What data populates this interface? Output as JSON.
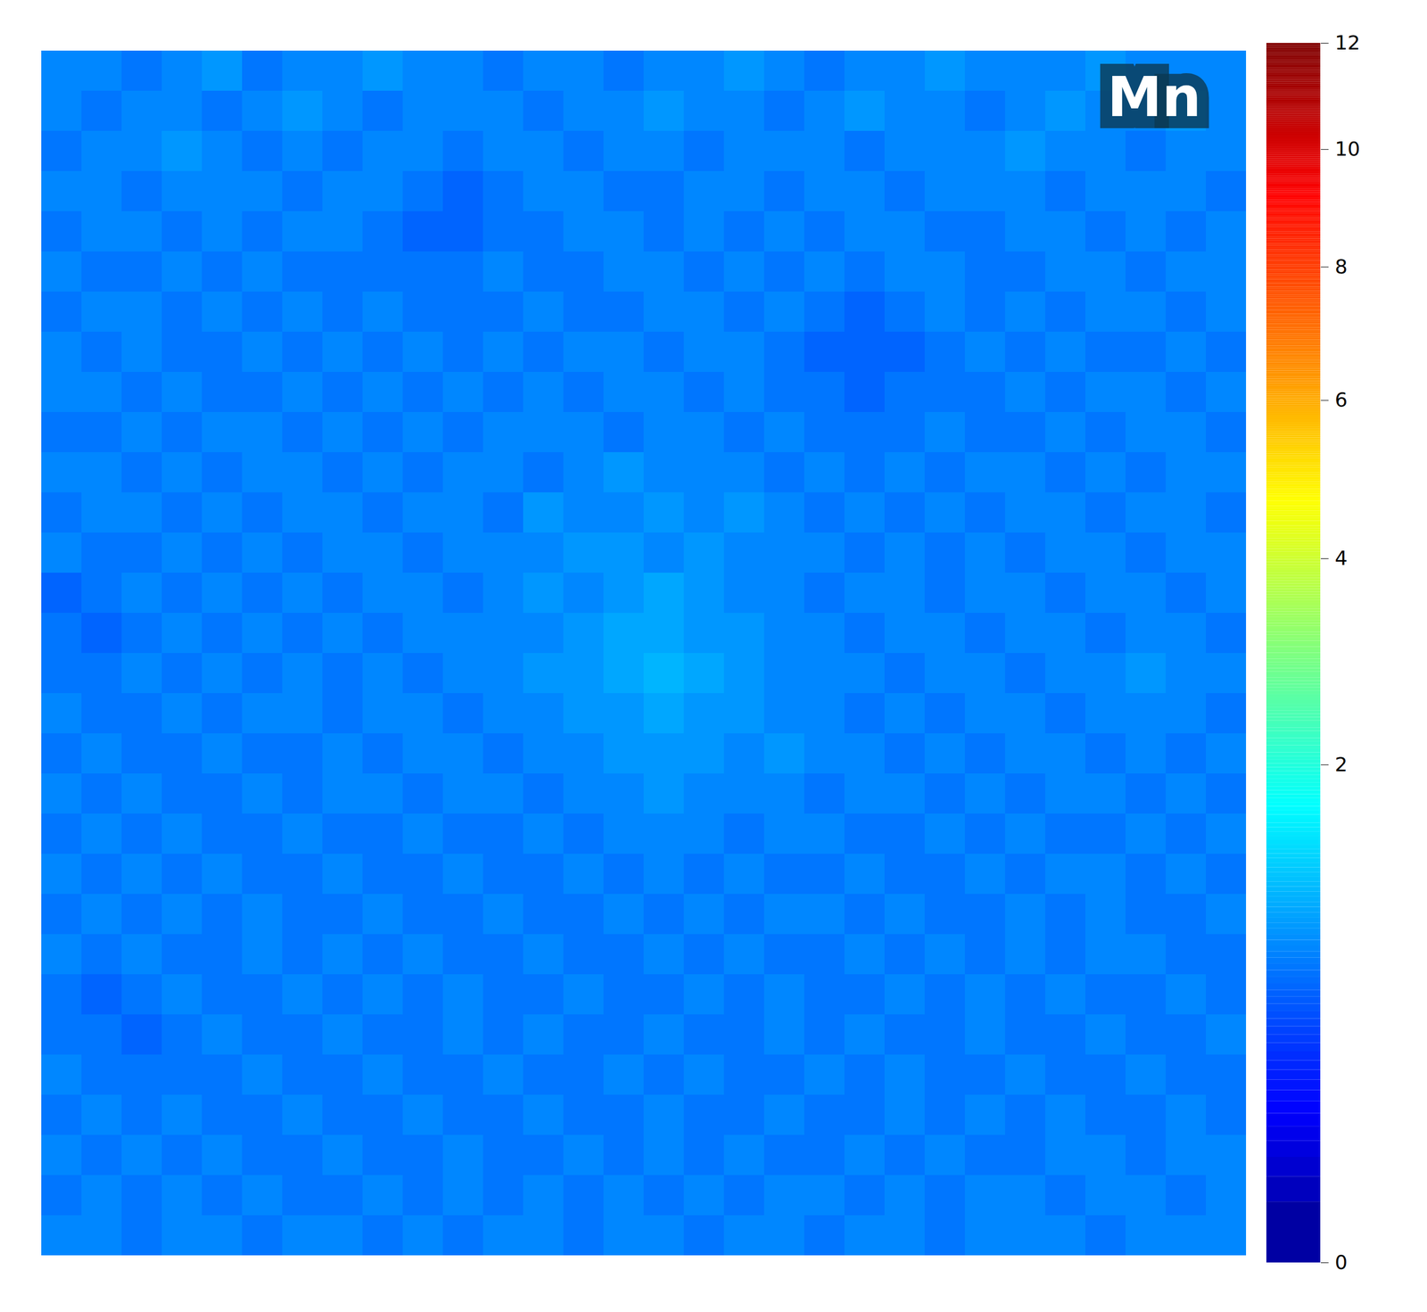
{
  "chart_data": {
    "type": "heatmap",
    "title": "Mn",
    "tick_labels": false,
    "colorbar": {
      "range": [
        0,
        12
      ],
      "ticks": [
        0,
        2,
        4,
        6,
        8,
        10,
        12
      ]
    },
    "values": [
      [
        0.8,
        0.8,
        0.7,
        0.8,
        0.9,
        0.7,
        0.8,
        0.8,
        0.9,
        0.8,
        0.8,
        0.7,
        0.8,
        0.8,
        0.7,
        0.8,
        0.8,
        0.9,
        0.8,
        0.7,
        0.8,
        0.8,
        0.9,
        0.8,
        0.8,
        0.8,
        0.9,
        0.8,
        0.8,
        0.8
      ],
      [
        0.8,
        0.7,
        0.8,
        0.8,
        0.7,
        0.8,
        0.9,
        0.8,
        0.7,
        0.8,
        0.8,
        0.8,
        0.7,
        0.8,
        0.8,
        0.9,
        0.8,
        0.8,
        0.7,
        0.8,
        0.9,
        0.8,
        0.8,
        0.7,
        0.8,
        0.9,
        0.8,
        0.8,
        0.9,
        0.8
      ],
      [
        0.7,
        0.8,
        0.8,
        0.9,
        0.8,
        0.7,
        0.8,
        0.7,
        0.8,
        0.8,
        0.7,
        0.8,
        0.8,
        0.7,
        0.8,
        0.8,
        0.7,
        0.8,
        0.8,
        0.8,
        0.7,
        0.8,
        0.8,
        0.8,
        0.9,
        0.8,
        0.8,
        0.7,
        0.8,
        0.8
      ],
      [
        0.8,
        0.8,
        0.7,
        0.8,
        0.8,
        0.8,
        0.7,
        0.8,
        0.8,
        0.7,
        0.6,
        0.7,
        0.8,
        0.8,
        0.7,
        0.7,
        0.8,
        0.8,
        0.7,
        0.8,
        0.8,
        0.7,
        0.8,
        0.8,
        0.8,
        0.7,
        0.8,
        0.8,
        0.8,
        0.7
      ],
      [
        0.7,
        0.8,
        0.8,
        0.7,
        0.8,
        0.7,
        0.8,
        0.8,
        0.7,
        0.6,
        0.6,
        0.7,
        0.7,
        0.8,
        0.8,
        0.7,
        0.8,
        0.7,
        0.8,
        0.7,
        0.8,
        0.8,
        0.7,
        0.7,
        0.8,
        0.8,
        0.7,
        0.8,
        0.7,
        0.8
      ],
      [
        0.8,
        0.7,
        0.7,
        0.8,
        0.7,
        0.8,
        0.7,
        0.7,
        0.7,
        0.7,
        0.7,
        0.8,
        0.7,
        0.7,
        0.8,
        0.8,
        0.7,
        0.8,
        0.7,
        0.8,
        0.7,
        0.8,
        0.8,
        0.7,
        0.7,
        0.8,
        0.8,
        0.7,
        0.8,
        0.8
      ],
      [
        0.7,
        0.8,
        0.8,
        0.7,
        0.8,
        0.7,
        0.8,
        0.7,
        0.8,
        0.7,
        0.7,
        0.7,
        0.8,
        0.7,
        0.7,
        0.8,
        0.8,
        0.7,
        0.8,
        0.7,
        0.6,
        0.7,
        0.8,
        0.7,
        0.8,
        0.7,
        0.8,
        0.8,
        0.7,
        0.8
      ],
      [
        0.8,
        0.7,
        0.8,
        0.7,
        0.7,
        0.8,
        0.7,
        0.8,
        0.7,
        0.8,
        0.7,
        0.8,
        0.7,
        0.8,
        0.8,
        0.7,
        0.8,
        0.8,
        0.7,
        0.6,
        0.6,
        0.6,
        0.7,
        0.8,
        0.7,
        0.8,
        0.7,
        0.7,
        0.8,
        0.7
      ],
      [
        0.8,
        0.8,
        0.7,
        0.8,
        0.7,
        0.7,
        0.8,
        0.7,
        0.8,
        0.7,
        0.8,
        0.7,
        0.8,
        0.7,
        0.8,
        0.8,
        0.7,
        0.8,
        0.7,
        0.7,
        0.6,
        0.7,
        0.7,
        0.7,
        0.8,
        0.7,
        0.8,
        0.8,
        0.7,
        0.8
      ],
      [
        0.7,
        0.7,
        0.8,
        0.7,
        0.8,
        0.8,
        0.7,
        0.8,
        0.7,
        0.8,
        0.7,
        0.8,
        0.8,
        0.8,
        0.7,
        0.8,
        0.8,
        0.7,
        0.8,
        0.7,
        0.7,
        0.7,
        0.8,
        0.7,
        0.7,
        0.8,
        0.7,
        0.8,
        0.8,
        0.7
      ],
      [
        0.8,
        0.8,
        0.7,
        0.8,
        0.7,
        0.8,
        0.8,
        0.7,
        0.8,
        0.7,
        0.8,
        0.8,
        0.7,
        0.8,
        0.9,
        0.8,
        0.8,
        0.8,
        0.7,
        0.8,
        0.7,
        0.8,
        0.7,
        0.8,
        0.8,
        0.7,
        0.8,
        0.7,
        0.8,
        0.8
      ],
      [
        0.7,
        0.8,
        0.8,
        0.7,
        0.8,
        0.7,
        0.8,
        0.8,
        0.7,
        0.8,
        0.8,
        0.7,
        0.9,
        0.8,
        0.8,
        0.9,
        0.8,
        0.9,
        0.8,
        0.7,
        0.8,
        0.7,
        0.8,
        0.7,
        0.8,
        0.8,
        0.7,
        0.8,
        0.8,
        0.7
      ],
      [
        0.8,
        0.7,
        0.7,
        0.8,
        0.7,
        0.8,
        0.7,
        0.8,
        0.8,
        0.7,
        0.8,
        0.8,
        0.8,
        0.9,
        0.9,
        0.8,
        0.9,
        0.8,
        0.8,
        0.8,
        0.7,
        0.8,
        0.7,
        0.8,
        0.7,
        0.8,
        0.8,
        0.7,
        0.8,
        0.8
      ],
      [
        0.6,
        0.7,
        0.8,
        0.7,
        0.8,
        0.7,
        0.8,
        0.7,
        0.8,
        0.8,
        0.7,
        0.8,
        0.9,
        0.8,
        0.9,
        1.0,
        0.9,
        0.8,
        0.8,
        0.7,
        0.8,
        0.8,
        0.7,
        0.8,
        0.8,
        0.7,
        0.8,
        0.8,
        0.7,
        0.8
      ],
      [
        0.7,
        0.6,
        0.7,
        0.8,
        0.7,
        0.8,
        0.7,
        0.8,
        0.7,
        0.8,
        0.8,
        0.8,
        0.8,
        0.9,
        1.0,
        1.0,
        0.9,
        0.9,
        0.8,
        0.8,
        0.7,
        0.8,
        0.8,
        0.7,
        0.8,
        0.8,
        0.7,
        0.8,
        0.8,
        0.7
      ],
      [
        0.7,
        0.7,
        0.8,
        0.7,
        0.8,
        0.7,
        0.8,
        0.7,
        0.8,
        0.7,
        0.8,
        0.8,
        0.9,
        0.9,
        1.0,
        1.1,
        1.0,
        0.9,
        0.8,
        0.8,
        0.8,
        0.7,
        0.8,
        0.8,
        0.7,
        0.8,
        0.8,
        0.9,
        0.8,
        0.8
      ],
      [
        0.8,
        0.7,
        0.7,
        0.8,
        0.7,
        0.8,
        0.8,
        0.7,
        0.8,
        0.8,
        0.7,
        0.8,
        0.8,
        0.9,
        0.9,
        1.0,
        0.9,
        0.9,
        0.8,
        0.8,
        0.7,
        0.8,
        0.7,
        0.8,
        0.8,
        0.7,
        0.8,
        0.8,
        0.8,
        0.7
      ],
      [
        0.7,
        0.8,
        0.7,
        0.7,
        0.8,
        0.7,
        0.7,
        0.8,
        0.7,
        0.8,
        0.8,
        0.7,
        0.8,
        0.8,
        0.9,
        0.9,
        0.9,
        0.8,
        0.9,
        0.8,
        0.8,
        0.7,
        0.8,
        0.7,
        0.8,
        0.8,
        0.7,
        0.8,
        0.7,
        0.8
      ],
      [
        0.8,
        0.7,
        0.8,
        0.7,
        0.7,
        0.8,
        0.7,
        0.8,
        0.8,
        0.7,
        0.8,
        0.8,
        0.7,
        0.8,
        0.8,
        0.9,
        0.8,
        0.8,
        0.8,
        0.7,
        0.8,
        0.8,
        0.7,
        0.8,
        0.7,
        0.8,
        0.8,
        0.7,
        0.8,
        0.7
      ],
      [
        0.7,
        0.8,
        0.7,
        0.8,
        0.7,
        0.7,
        0.8,
        0.7,
        0.7,
        0.8,
        0.7,
        0.7,
        0.8,
        0.7,
        0.8,
        0.8,
        0.8,
        0.7,
        0.8,
        0.8,
        0.7,
        0.7,
        0.8,
        0.7,
        0.8,
        0.7,
        0.7,
        0.8,
        0.7,
        0.8
      ],
      [
        0.8,
        0.7,
        0.8,
        0.7,
        0.8,
        0.7,
        0.7,
        0.8,
        0.7,
        0.7,
        0.8,
        0.7,
        0.7,
        0.8,
        0.7,
        0.8,
        0.7,
        0.8,
        0.7,
        0.7,
        0.8,
        0.7,
        0.7,
        0.8,
        0.7,
        0.8,
        0.8,
        0.7,
        0.8,
        0.7
      ],
      [
        0.7,
        0.8,
        0.7,
        0.8,
        0.7,
        0.8,
        0.7,
        0.7,
        0.8,
        0.7,
        0.7,
        0.8,
        0.7,
        0.7,
        0.8,
        0.7,
        0.8,
        0.7,
        0.8,
        0.8,
        0.7,
        0.8,
        0.7,
        0.7,
        0.8,
        0.7,
        0.8,
        0.7,
        0.7,
        0.8
      ],
      [
        0.8,
        0.7,
        0.8,
        0.7,
        0.7,
        0.8,
        0.7,
        0.8,
        0.7,
        0.8,
        0.7,
        0.7,
        0.8,
        0.7,
        0.7,
        0.8,
        0.7,
        0.8,
        0.7,
        0.7,
        0.8,
        0.7,
        0.8,
        0.7,
        0.8,
        0.7,
        0.8,
        0.8,
        0.7,
        0.7
      ],
      [
        0.7,
        0.6,
        0.7,
        0.8,
        0.7,
        0.7,
        0.8,
        0.7,
        0.8,
        0.7,
        0.8,
        0.7,
        0.7,
        0.8,
        0.7,
        0.7,
        0.8,
        0.7,
        0.8,
        0.7,
        0.7,
        0.8,
        0.7,
        0.8,
        0.7,
        0.8,
        0.7,
        0.7,
        0.8,
        0.7
      ],
      [
        0.7,
        0.7,
        0.6,
        0.7,
        0.8,
        0.7,
        0.7,
        0.8,
        0.7,
        0.7,
        0.8,
        0.7,
        0.8,
        0.7,
        0.7,
        0.8,
        0.7,
        0.7,
        0.8,
        0.7,
        0.8,
        0.7,
        0.7,
        0.8,
        0.7,
        0.7,
        0.8,
        0.7,
        0.7,
        0.8
      ],
      [
        0.8,
        0.7,
        0.7,
        0.7,
        0.7,
        0.8,
        0.7,
        0.7,
        0.8,
        0.7,
        0.7,
        0.8,
        0.7,
        0.7,
        0.8,
        0.7,
        0.8,
        0.7,
        0.7,
        0.8,
        0.7,
        0.8,
        0.7,
        0.7,
        0.8,
        0.7,
        0.7,
        0.8,
        0.7,
        0.7
      ],
      [
        0.7,
        0.8,
        0.7,
        0.8,
        0.7,
        0.7,
        0.8,
        0.7,
        0.7,
        0.8,
        0.7,
        0.7,
        0.8,
        0.7,
        0.7,
        0.8,
        0.7,
        0.7,
        0.8,
        0.7,
        0.7,
        0.8,
        0.7,
        0.8,
        0.7,
        0.8,
        0.7,
        0.7,
        0.8,
        0.7
      ],
      [
        0.8,
        0.7,
        0.8,
        0.7,
        0.8,
        0.7,
        0.7,
        0.8,
        0.7,
        0.7,
        0.8,
        0.7,
        0.7,
        0.8,
        0.7,
        0.8,
        0.7,
        0.8,
        0.7,
        0.7,
        0.8,
        0.7,
        0.8,
        0.7,
        0.7,
        0.8,
        0.8,
        0.7,
        0.8,
        0.8
      ],
      [
        0.7,
        0.8,
        0.7,
        0.8,
        0.7,
        0.8,
        0.7,
        0.7,
        0.8,
        0.7,
        0.8,
        0.7,
        0.8,
        0.7,
        0.8,
        0.7,
        0.8,
        0.7,
        0.8,
        0.8,
        0.7,
        0.8,
        0.7,
        0.8,
        0.8,
        0.7,
        0.8,
        0.8,
        0.7,
        0.8
      ],
      [
        0.8,
        0.8,
        0.7,
        0.8,
        0.8,
        0.7,
        0.8,
        0.8,
        0.7,
        0.8,
        0.7,
        0.8,
        0.8,
        0.7,
        0.8,
        0.8,
        0.7,
        0.8,
        0.8,
        0.7,
        0.8,
        0.8,
        0.7,
        0.8,
        0.8,
        0.8,
        0.7,
        0.8,
        0.8,
        0.8
      ]
    ]
  }
}
